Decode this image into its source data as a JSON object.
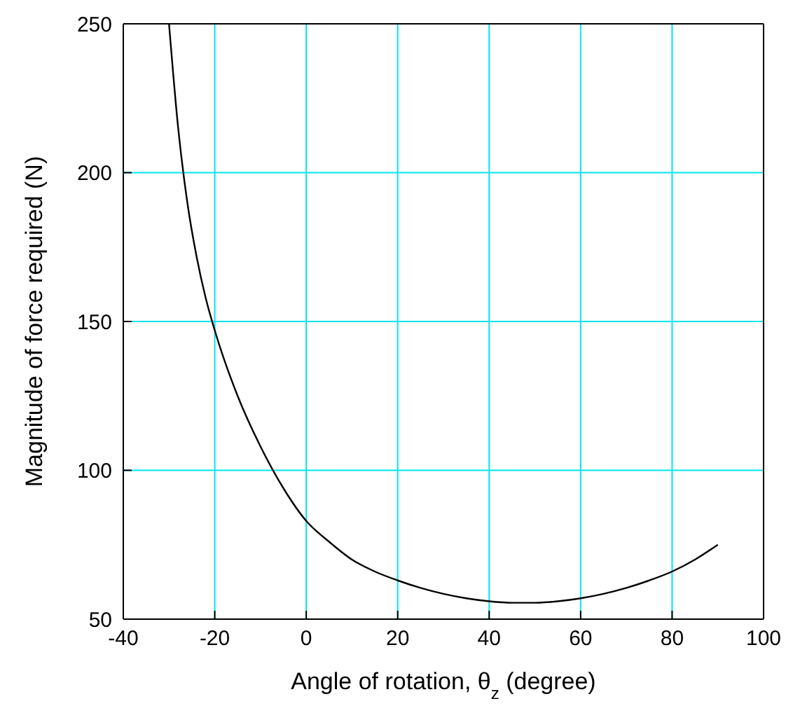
{
  "chart_data": {
    "type": "line",
    "xlabel": "Angle of rotation, θ$_{z}$ (degree)",
    "ylabel": "Magnitude of force required (N)",
    "x": [
      -30,
      -28,
      -26,
      -24,
      -22,
      -20,
      -15,
      -10,
      -5,
      0,
      5,
      10,
      15,
      20,
      25,
      30,
      35,
      40,
      45,
      50,
      55,
      60,
      65,
      70,
      75,
      80,
      85,
      90
    ],
    "series": [
      {
        "color": "#000000",
        "values": [
          250,
          215,
          190,
          172,
          158,
          147,
          125,
          108,
          94,
          83,
          76,
          70,
          66,
          63,
          60.5,
          58.5,
          57,
          56,
          55.5,
          55.5,
          56,
          57,
          58.5,
          60.5,
          63,
          66,
          70,
          75
        ]
      }
    ],
    "xlim": [
      -40,
      100
    ],
    "xticks": [
      -40,
      -20,
      0,
      20,
      40,
      60,
      80,
      100
    ],
    "ylim": [
      50,
      250
    ],
    "yticks": [
      50,
      100,
      150,
      200,
      250
    ],
    "grid": true,
    "marker": "none",
    "line_style": "solid"
  }
}
